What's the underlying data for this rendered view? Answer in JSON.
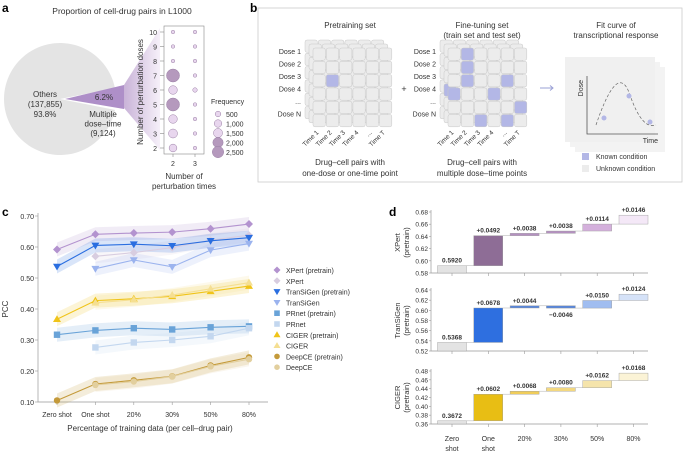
{
  "panel_labels": {
    "a": "a",
    "b": "b",
    "c": "c",
    "d": "d"
  },
  "chart_data": [
    {
      "type": "pie",
      "title": "Proportion of cell-drug pairs in L1000",
      "slices": [
        {
          "label": "Others",
          "count": "(137,855)",
          "percent": "93.8%",
          "value": 93.8,
          "color": "#e4e4e4"
        },
        {
          "label_lines": [
            "Multiple",
            "dose–time",
            "(9,124)"
          ],
          "percent": "6.2%",
          "value": 6.2,
          "color": "#ae8fc8"
        }
      ]
    },
    {
      "type": "scatter",
      "subtype": "bubble",
      "xlabel_lines": [
        "Number of",
        "perturbation times"
      ],
      "ylabel": "Number of perturbation doses",
      "x_ticks": [
        "2",
        "3"
      ],
      "y_ticks": [
        "2",
        "3",
        "4",
        "5",
        "6",
        "7",
        "8",
        "9",
        "10"
      ],
      "points": [
        {
          "x": 2,
          "y": 10,
          "frequency": 100
        },
        {
          "x": 2,
          "y": 9,
          "frequency": 100
        },
        {
          "x": 2,
          "y": 8,
          "frequency": 120
        },
        {
          "x": 2,
          "y": 7,
          "frequency": 2500
        },
        {
          "x": 2,
          "y": 6,
          "frequency": 1100
        },
        {
          "x": 2,
          "y": 5,
          "frequency": 2500
        },
        {
          "x": 2,
          "y": 4,
          "frequency": 1100
        },
        {
          "x": 2,
          "y": 3,
          "frequency": 1200
        },
        {
          "x": 2,
          "y": 2,
          "frequency": 900
        },
        {
          "x": 3,
          "y": 10,
          "frequency": 100
        },
        {
          "x": 3,
          "y": 9,
          "frequency": 100
        },
        {
          "x": 3,
          "y": 8,
          "frequency": 100
        },
        {
          "x": 3,
          "y": 7,
          "frequency": 120
        },
        {
          "x": 3,
          "y": 6,
          "frequency": 300
        },
        {
          "x": 3,
          "y": 5,
          "frequency": 100
        },
        {
          "x": 3,
          "y": 4,
          "frequency": 100
        },
        {
          "x": 3,
          "y": 3,
          "frequency": 100
        },
        {
          "x": 3,
          "y": 2,
          "frequency": 100
        }
      ],
      "legend_title": "Frequency",
      "legend": [
        {
          "label": "500",
          "value": 500
        },
        {
          "label": "1,000",
          "value": 1000
        },
        {
          "label": "1,500",
          "value": 1500
        },
        {
          "label": "2,000",
          "value": 2000
        },
        {
          "label": "2,500",
          "value": 2500
        }
      ],
      "colors": {
        "light": "#e8d6ee",
        "dark": "#b599bd",
        "edge": "#9a7fa5"
      }
    },
    {
      "type": "line",
      "xlabel": "Percentage of training data (per cell–drug pair)",
      "ylabel": "PCC",
      "categories": [
        "Zero shot",
        "One shot",
        "20%",
        "30%",
        "50%",
        "80%"
      ],
      "ylim": [
        0.1,
        0.7
      ],
      "y_ticks": [
        "0.10",
        "0.20",
        "0.30",
        "0.40",
        "0.50",
        "0.60",
        "0.70"
      ],
      "grid": false,
      "legend_position": "right",
      "series": [
        {
          "name": "XPert (pretrain)",
          "marker": "diamond",
          "color": "#b393cf",
          "values": [
            0.592,
            0.641,
            0.645,
            0.648,
            0.659,
            0.674
          ]
        },
        {
          "name": "XPert",
          "marker": "diamond",
          "color": "#d8cde0",
          "values": [
            null,
            0.57,
            0.582,
            0.598,
            0.622,
            0.638
          ]
        },
        {
          "name": "TranSiGen (pretrain)",
          "marker": "triangle-down",
          "color": "#2a6ee0",
          "values": [
            0.537,
            0.605,
            0.609,
            0.604,
            0.62,
            0.63
          ]
        },
        {
          "name": "TranSiGen",
          "marker": "triangle-down",
          "color": "#9bb3ee",
          "values": [
            null,
            0.53,
            0.558,
            0.536,
            0.59,
            0.611
          ]
        },
        {
          "name": "PRnet (pretrain)",
          "marker": "square",
          "color": "#69a3d8",
          "values": [
            0.317,
            0.331,
            0.338,
            0.334,
            0.341,
            0.344
          ]
        },
        {
          "name": "PRnet",
          "marker": "square",
          "color": "#c3d7ef",
          "values": [
            null,
            0.276,
            0.292,
            0.3,
            0.312,
            0.338
          ]
        },
        {
          "name": "CIGER (pretrain)",
          "marker": "triangle-up",
          "color": "#f0c419",
          "values": [
            0.367,
            0.427,
            0.433,
            0.441,
            0.457,
            0.474
          ]
        },
        {
          "name": "CIGER",
          "marker": "triangle-up",
          "color": "#f5df92",
          "values": [
            null,
            0.42,
            0.43,
            0.445,
            0.465,
            0.485
          ]
        },
        {
          "name": "DeepCE (pretrain)",
          "marker": "circle",
          "color": "#c49a3a",
          "values": [
            0.105,
            0.158,
            0.17,
            0.183,
            0.218,
            0.244
          ]
        },
        {
          "name": "DeepCE",
          "marker": "circle",
          "color": "#e2cf9e",
          "values": [
            null,
            0.155,
            0.166,
            0.182,
            0.215,
            0.238
          ]
        }
      ]
    },
    {
      "type": "bar",
      "subtype": "waterfall",
      "categories": [
        [
          "Zero",
          "shot"
        ],
        [
          "One",
          "shot"
        ],
        [
          "20%"
        ],
        [
          "30%"
        ],
        [
          "50%"
        ],
        [
          "80%"
        ]
      ],
      "subplots": [
        {
          "ylabel": [
            "XPert",
            "(pretrain)"
          ],
          "ylim": [
            0.58,
            0.68
          ],
          "y_ticks": [
            "0.58",
            "0.60",
            "0.62",
            "0.64",
            "0.66",
            "0.68"
          ],
          "base": 0.592,
          "deltas": [
            0.0492,
            0.0038,
            0.0038,
            0.0114,
            0.0146
          ],
          "labels": [
            "0.5920",
            "+0.0492",
            "+0.0038",
            "+0.0038",
            "+0.0114",
            "+0.0146"
          ],
          "colors": [
            "#e3e3e3",
            "#8e6d96",
            "#b490c0",
            "#b490c0",
            "#d4b0dc",
            "#f4e8f7"
          ]
        },
        {
          "ylabel": [
            "TranSiGen",
            "(pretrain)"
          ],
          "ylim": [
            0.52,
            0.64
          ],
          "y_ticks": [
            "0.52",
            "0.54",
            "0.56",
            "0.58",
            "0.60",
            "0.62",
            "0.64"
          ],
          "base": 0.5368,
          "deltas": [
            0.0678,
            0.0044,
            -0.0046,
            0.015,
            0.0124
          ],
          "labels": [
            "0.5368",
            "+0.0678",
            "+0.0044",
            "−0.0046",
            "+0.0150",
            "+0.0124"
          ],
          "colors": [
            "#e3e3e3",
            "#2e6fe0",
            "#5a86d6",
            "#5a86d6",
            "#a0bdf0",
            "#d5e2f8"
          ]
        },
        {
          "ylabel": [
            "CIGER",
            "(pretrain)"
          ],
          "ylim": [
            0.36,
            0.48
          ],
          "y_ticks": [
            "0.36",
            "0.38",
            "0.40",
            "0.42",
            "0.44",
            "0.46",
            "0.48"
          ],
          "base": 0.3672,
          "deltas": [
            0.0602,
            0.0068,
            0.008,
            0.0162,
            0.0168
          ],
          "labels": [
            "0.3672",
            "+0.0602",
            "+0.0068",
            "+0.0080",
            "+0.0162",
            "+0.0168"
          ],
          "colors": [
            "#e3e3e3",
            "#e8be14",
            "#f0cd5a",
            "#f3d880",
            "#f5e4ab",
            "#fbf3d6"
          ]
        }
      ]
    }
  ],
  "diagram": {
    "pretraining_title": "Pretraining set",
    "finetuning_title_lines": [
      "Fine-tuning set",
      "(train set and test set)"
    ],
    "fit_title_lines": [
      "Fit curve of",
      "transcriptional response"
    ],
    "dose_labels": [
      "Dose 1",
      "Dose 2",
      "Dose 3",
      "Dose 4",
      "...",
      "Dose N"
    ],
    "time_labels": [
      "Time 1",
      "Time 2",
      "Time 3",
      "Time 4",
      "...",
      "Time T"
    ],
    "pretraining_caption": [
      "Drug–cell pairs with",
      "one-dose or one-time point"
    ],
    "finetuning_caption": [
      "Drug–cell pairs with",
      "multiple dose–time points"
    ],
    "plus": "+",
    "axis_dose": "Dose",
    "axis_time": "Time",
    "legend": [
      {
        "label": "Known condition",
        "color": "#b3b7e6"
      },
      {
        "label": "Unknown condition",
        "color": "#ececec"
      }
    ]
  }
}
